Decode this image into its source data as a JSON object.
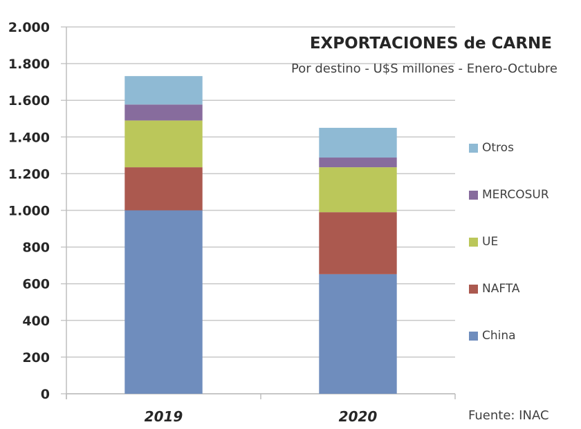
{
  "chart_data": {
    "type": "bar",
    "stacked": true,
    "title": "EXPORTACIONES de CARNE",
    "subtitle": "Por destino - U$S millones - Enero-Octubre",
    "source": "Fuente: INAC",
    "xlabel": "",
    "ylabel": "",
    "categories": [
      "2019",
      "2020"
    ],
    "ylim": [
      0,
      2000
    ],
    "yticks": [
      0,
      200,
      400,
      600,
      800,
      1000,
      1200,
      1400,
      1600,
      1800,
      2000
    ],
    "ytick_labels": [
      "0",
      "200",
      "400",
      "600",
      "800",
      "1.000",
      "1.200",
      "1.400",
      "1.600",
      "1.800",
      "2.000"
    ],
    "grid": true,
    "legend_position": "right",
    "series": [
      {
        "name": "China",
        "color": "#6f8dbd",
        "values": [
          1000,
          652
        ]
      },
      {
        "name": "NAFTA",
        "color": "#ab594f",
        "values": [
          235,
          338
        ]
      },
      {
        "name": "UE",
        "color": "#bbc75a",
        "values": [
          255,
          245
        ]
      },
      {
        "name": "MERCOSUR",
        "color": "#876c9d",
        "values": [
          87,
          53
        ]
      },
      {
        "name": "Otros",
        "color": "#8fbad4",
        "values": [
          155,
          162
        ]
      }
    ]
  }
}
